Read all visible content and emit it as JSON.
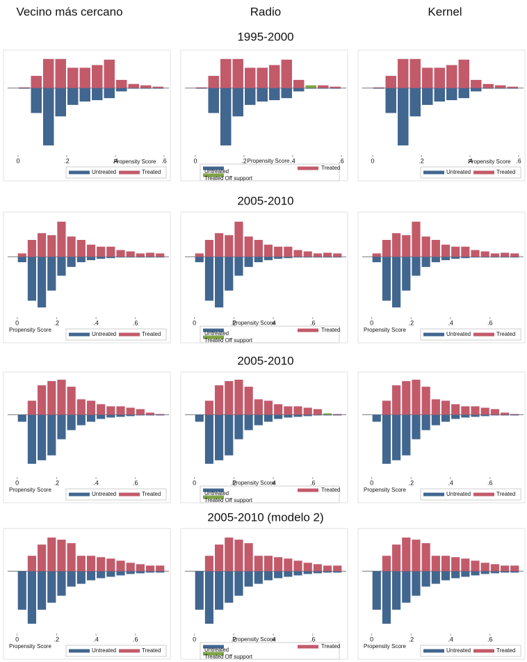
{
  "column_titles": [
    "Vecino más cercano",
    "Radio",
    "Kernel"
  ],
  "row_titles": [
    "1995-2000",
    "2005-2010",
    "2005-2010",
    "2005-2010 (modelo 2)"
  ],
  "chart_data": [
    {
      "type": "mirrored_histogram",
      "xlabel": "Propensity Score",
      "bins": [
        0,
        0.05,
        0.1,
        0.15,
        0.2,
        0.25,
        0.3,
        0.35,
        0.4,
        0.45,
        0.5,
        0.55,
        0.6
      ],
      "xlim": [
        -0.02,
        0.62
      ],
      "ylim": [
        -90,
        50
      ],
      "xticks": [
        0,
        {
          "value": 0.2,
          "label": ".2"
        },
        {
          "value": 0.4,
          "label": ".4"
        },
        {
          "value": 0.6,
          "label": ".6"
        }
      ],
      "series": [
        {
          "name": "Untreated",
          "color": "#41668f",
          "values": [
            -1,
            -37,
            -85,
            -42,
            -25,
            -20,
            -18,
            -15,
            -5,
            -1,
            -1,
            -1
          ]
        },
        {
          "name": "Treated",
          "color": "#c25a6a",
          "values": [
            1,
            18,
            43,
            43,
            30,
            30,
            34,
            42,
            12,
            6,
            4,
            2
          ]
        }
      ]
    },
    {
      "type": "mirrored_histogram",
      "xlabel": "Propensity Score",
      "bins": [
        0,
        0.05,
        0.1,
        0.15,
        0.2,
        0.25,
        0.3,
        0.35,
        0.4,
        0.45,
        0.5,
        0.55,
        0.6
      ],
      "xlim": [
        -0.02,
        0.62
      ],
      "ylim": [
        -90,
        50
      ],
      "xticks": [
        0,
        {
          "value": 0.2,
          "label": ".2"
        },
        {
          "value": 0.4,
          "label": ".4"
        },
        {
          "value": 0.6,
          "label": ".6"
        }
      ],
      "series": [
        {
          "name": "Untreated",
          "color": "#41668f",
          "values": [
            -1,
            -37,
            -85,
            -42,
            -25,
            -20,
            -18,
            -15,
            -5,
            -1,
            -1,
            -1
          ]
        },
        {
          "name": "Treated",
          "color": "#c25a6a",
          "values": [
            1,
            18,
            43,
            43,
            30,
            30,
            34,
            42,
            12,
            null,
            4,
            2
          ]
        },
        {
          "name": "Treated Off support",
          "color": "#7ea446",
          "values": [
            null,
            null,
            null,
            null,
            null,
            null,
            null,
            null,
            null,
            4,
            null,
            null
          ]
        }
      ]
    },
    {
      "type": "mirrored_histogram",
      "xlabel": "Propensity Score",
      "bins": [
        0,
        0.05,
        0.1,
        0.15,
        0.2,
        0.25,
        0.3,
        0.35,
        0.4,
        0.45,
        0.5,
        0.55,
        0.6
      ],
      "xlim": [
        -0.02,
        0.62
      ],
      "ylim": [
        -90,
        50
      ],
      "xticks": [
        0,
        {
          "value": 0.2,
          "label": ".2"
        },
        {
          "value": 0.4,
          "label": ".4"
        },
        {
          "value": 0.6,
          "label": ".6"
        }
      ],
      "series": [
        {
          "name": "Untreated",
          "color": "#41668f",
          "values": [
            -1,
            -37,
            -85,
            -42,
            -25,
            -20,
            -18,
            -15,
            -5,
            -1,
            -1,
            -1
          ]
        },
        {
          "name": "Treated",
          "color": "#c25a6a",
          "values": [
            1,
            18,
            43,
            43,
            30,
            30,
            34,
            42,
            12,
            6,
            4,
            2
          ]
        }
      ]
    },
    {
      "type": "mirrored_histogram",
      "xlabel": "Propensity Score",
      "bins": [
        0,
        0.05,
        0.1,
        0.15,
        0.2,
        0.25,
        0.3,
        0.35,
        0.4,
        0.45,
        0.5,
        0.55,
        0.6,
        0.65,
        0.7,
        0.75
      ],
      "xlim": [
        -0.02,
        0.77
      ],
      "ylim": [
        -80,
        60
      ],
      "xticks": [
        0,
        {
          "value": 0.2,
          "label": ".2"
        },
        {
          "value": 0.4,
          "label": ".4"
        },
        {
          "value": 0.6,
          "label": ".6"
        }
      ],
      "series": [
        {
          "name": "Untreated",
          "color": "#41668f",
          "values": [
            -8,
            -65,
            -75,
            -50,
            -28,
            -15,
            -8,
            -5,
            -3,
            -2,
            -1,
            -1,
            -1,
            -1,
            -1
          ]
        },
        {
          "name": "Treated",
          "color": "#c25a6a",
          "values": [
            5,
            25,
            35,
            32,
            52,
            30,
            25,
            18,
            15,
            15,
            10,
            8,
            5,
            6,
            5
          ]
        }
      ]
    },
    {
      "type": "mirrored_histogram",
      "xlabel": "Propensity Score",
      "bins": [
        0,
        0.05,
        0.1,
        0.15,
        0.2,
        0.25,
        0.3,
        0.35,
        0.4,
        0.45,
        0.5,
        0.55,
        0.6,
        0.65,
        0.7,
        0.75
      ],
      "xlim": [
        -0.02,
        0.77
      ],
      "ylim": [
        -80,
        60
      ],
      "xticks": [
        0,
        {
          "value": 0.2,
          "label": ".2"
        },
        {
          "value": 0.4,
          "label": ".4"
        },
        {
          "value": 0.6,
          "label": ".6"
        }
      ],
      "series": [
        {
          "name": "Untreated",
          "color": "#41668f",
          "values": [
            -8,
            -65,
            -75,
            -50,
            -28,
            -15,
            -8,
            -5,
            -3,
            -2,
            -1,
            -1,
            -1,
            -1,
            -1
          ]
        },
        {
          "name": "Treated",
          "color": "#c25a6a",
          "values": [
            5,
            25,
            35,
            32,
            52,
            30,
            25,
            18,
            15,
            15,
            10,
            8,
            5,
            6,
            5
          ]
        },
        {
          "name": "Treated Off support",
          "color": "#7ea446",
          "values": [
            null,
            null,
            null,
            null,
            null,
            null,
            null,
            null,
            null,
            null,
            null,
            null,
            null,
            null,
            null
          ]
        }
      ]
    },
    {
      "type": "mirrored_histogram",
      "xlabel": "Propensity Score",
      "bins": [
        0,
        0.05,
        0.1,
        0.15,
        0.2,
        0.25,
        0.3,
        0.35,
        0.4,
        0.45,
        0.5,
        0.55,
        0.6,
        0.65,
        0.7,
        0.75
      ],
      "xlim": [
        -0.02,
        0.77
      ],
      "ylim": [
        -80,
        60
      ],
      "xticks": [
        0,
        {
          "value": 0.2,
          "label": ".2"
        },
        {
          "value": 0.4,
          "label": ".4"
        },
        {
          "value": 0.6,
          "label": ".6"
        }
      ],
      "series": [
        {
          "name": "Untreated",
          "color": "#41668f",
          "values": [
            -8,
            -65,
            -75,
            -50,
            -28,
            -15,
            -8,
            -5,
            -3,
            -2,
            -1,
            -1,
            -1,
            -1,
            -1
          ]
        },
        {
          "name": "Treated",
          "color": "#c25a6a",
          "values": [
            5,
            25,
            35,
            32,
            52,
            30,
            25,
            18,
            15,
            15,
            10,
            8,
            5,
            6,
            5
          ]
        }
      ]
    },
    {
      "type": "mirrored_histogram",
      "xlabel": "Propensity Score",
      "bins": [
        0,
        0.05,
        0.1,
        0.15,
        0.2,
        0.25,
        0.3,
        0.35,
        0.4,
        0.45,
        0.5,
        0.55,
        0.6,
        0.65,
        0.7,
        0.75
      ],
      "xlim": [
        -0.02,
        0.77
      ],
      "ylim": [
        -80,
        55
      ],
      "xticks": [
        0,
        {
          "value": 0.2,
          "label": ".2"
        },
        {
          "value": 0.4,
          "label": ".4"
        },
        {
          "value": 0.6,
          "label": ".6"
        }
      ],
      "series": [
        {
          "name": "Untreated",
          "color": "#41668f",
          "values": [
            -10,
            -70,
            -65,
            -58,
            -35,
            -22,
            -15,
            -10,
            -6,
            -4,
            -3,
            -2,
            -1,
            -1,
            -1
          ]
        },
        {
          "name": "Treated",
          "color": "#c25a6a",
          "values": [
            0,
            20,
            42,
            48,
            50,
            40,
            22,
            20,
            15,
            12,
            12,
            10,
            8,
            3,
            1
          ]
        }
      ]
    },
    {
      "type": "mirrored_histogram",
      "xlabel": "Propensity Score",
      "bins": [
        0,
        0.05,
        0.1,
        0.15,
        0.2,
        0.25,
        0.3,
        0.35,
        0.4,
        0.45,
        0.5,
        0.55,
        0.6,
        0.65,
        0.7,
        0.75
      ],
      "xlim": [
        -0.02,
        0.77
      ],
      "ylim": [
        -80,
        55
      ],
      "xticks": [
        0,
        {
          "value": 0.2,
          "label": ".2"
        },
        {
          "value": 0.4,
          "label": ".4"
        },
        {
          "value": 0.6,
          "label": ".6"
        }
      ],
      "series": [
        {
          "name": "Untreated",
          "color": "#41668f",
          "values": [
            -10,
            -70,
            -65,
            -58,
            -35,
            -22,
            -15,
            -10,
            -6,
            -4,
            -3,
            -2,
            -1,
            -1,
            -1
          ]
        },
        {
          "name": "Treated",
          "color": "#c25a6a",
          "values": [
            0,
            20,
            42,
            48,
            50,
            40,
            22,
            20,
            15,
            12,
            12,
            10,
            8,
            null,
            1
          ]
        },
        {
          "name": "Treated Off support",
          "color": "#7ea446",
          "values": [
            null,
            null,
            null,
            null,
            null,
            null,
            null,
            null,
            null,
            null,
            null,
            null,
            null,
            2,
            null
          ]
        }
      ]
    },
    {
      "type": "mirrored_histogram",
      "xlabel": "Propensity Score",
      "bins": [
        0,
        0.05,
        0.1,
        0.15,
        0.2,
        0.25,
        0.3,
        0.35,
        0.4,
        0.45,
        0.5,
        0.55,
        0.6,
        0.65,
        0.7,
        0.75
      ],
      "xlim": [
        -0.02,
        0.77
      ],
      "ylim": [
        -80,
        55
      ],
      "xticks": [
        0,
        {
          "value": 0.2,
          "label": ".2"
        },
        {
          "value": 0.4,
          "label": ".4"
        },
        {
          "value": 0.6,
          "label": ".6"
        }
      ],
      "series": [
        {
          "name": "Untreated",
          "color": "#41668f",
          "values": [
            -10,
            -70,
            -65,
            -58,
            -35,
            -22,
            -15,
            -10,
            -6,
            -4,
            -3,
            -2,
            -1,
            -1,
            -1
          ]
        },
        {
          "name": "Treated",
          "color": "#c25a6a",
          "values": [
            0,
            20,
            42,
            48,
            50,
            40,
            22,
            20,
            15,
            12,
            12,
            10,
            8,
            3,
            1
          ]
        }
      ]
    },
    {
      "type": "mirrored_histogram",
      "xlabel": "Propensity Score",
      "bins": [
        0,
        0.05,
        0.1,
        0.15,
        0.2,
        0.25,
        0.3,
        0.35,
        0.4,
        0.45,
        0.5,
        0.55,
        0.6,
        0.65,
        0.7,
        0.75
      ],
      "xlim": [
        -0.02,
        0.77
      ],
      "ylim": [
        -80,
        55
      ],
      "xticks": [
        0,
        {
          "value": 0.2,
          "label": ".2"
        },
        {
          "value": 0.4,
          "label": ".4"
        },
        {
          "value": 0.6,
          "label": ".6"
        }
      ],
      "series": [
        {
          "name": "Untreated",
          "color": "#41668f",
          "values": [
            -55,
            -75,
            -55,
            -45,
            -35,
            -22,
            -18,
            -13,
            -10,
            -8,
            -6,
            -4,
            -3,
            -2,
            -2
          ]
        },
        {
          "name": "Treated",
          "color": "#c25a6a",
          "values": [
            0,
            22,
            38,
            48,
            45,
            40,
            22,
            22,
            20,
            18,
            15,
            12,
            10,
            8,
            8
          ]
        }
      ]
    },
    {
      "type": "mirrored_histogram",
      "xlabel": "Propensity Score",
      "bins": [
        0,
        0.05,
        0.1,
        0.15,
        0.2,
        0.25,
        0.3,
        0.35,
        0.4,
        0.45,
        0.5,
        0.55,
        0.6,
        0.65,
        0.7,
        0.75
      ],
      "xlim": [
        -0.02,
        0.77
      ],
      "ylim": [
        -80,
        55
      ],
      "xticks": [
        0,
        {
          "value": 0.2,
          "label": ".2"
        },
        {
          "value": 0.4,
          "label": ".4"
        },
        {
          "value": 0.6,
          "label": ".6"
        }
      ],
      "series": [
        {
          "name": "Untreated",
          "color": "#41668f",
          "values": [
            -55,
            -75,
            -55,
            -45,
            -35,
            -22,
            -18,
            -13,
            -10,
            -8,
            -6,
            -4,
            -3,
            -2,
            -2
          ]
        },
        {
          "name": "Treated",
          "color": "#c25a6a",
          "values": [
            0,
            22,
            38,
            48,
            45,
            40,
            22,
            22,
            20,
            18,
            15,
            12,
            10,
            8,
            8
          ]
        },
        {
          "name": "Treated Off support",
          "color": "#7ea446",
          "values": [
            null,
            null,
            null,
            null,
            null,
            null,
            null,
            null,
            null,
            null,
            null,
            null,
            null,
            null,
            null
          ]
        }
      ]
    },
    {
      "type": "mirrored_histogram",
      "xlabel": "Propensity Score",
      "bins": [
        0,
        0.05,
        0.1,
        0.15,
        0.2,
        0.25,
        0.3,
        0.35,
        0.4,
        0.45,
        0.5,
        0.55,
        0.6,
        0.65,
        0.7,
        0.75
      ],
      "xlim": [
        -0.02,
        0.77
      ],
      "ylim": [
        -80,
        55
      ],
      "xticks": [
        0,
        {
          "value": 0.2,
          "label": ".2"
        },
        {
          "value": 0.4,
          "label": ".4"
        },
        {
          "value": 0.6,
          "label": ".6"
        }
      ],
      "series": [
        {
          "name": "Untreated",
          "color": "#41668f",
          "values": [
            -55,
            -75,
            -55,
            -45,
            -35,
            -22,
            -18,
            -13,
            -10,
            -8,
            -6,
            -4,
            -3,
            -2,
            -2
          ]
        },
        {
          "name": "Treated",
          "color": "#c25a6a",
          "values": [
            0,
            22,
            38,
            48,
            45,
            40,
            22,
            22,
            20,
            18,
            15,
            12,
            10,
            8,
            8
          ]
        }
      ]
    }
  ]
}
